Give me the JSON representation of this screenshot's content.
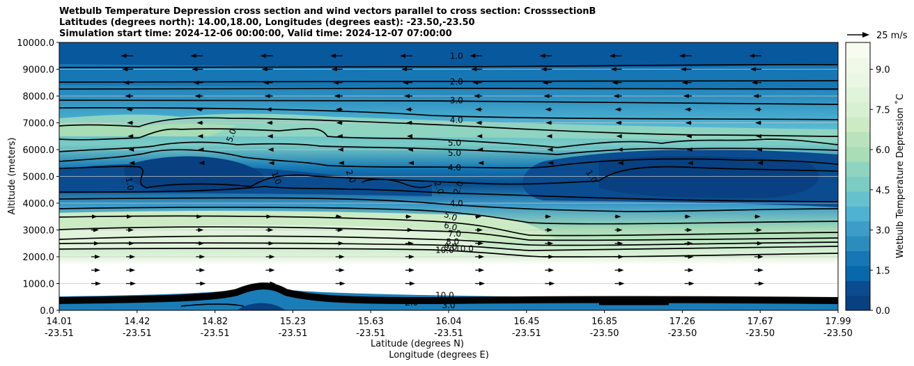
{
  "chart_data": {
    "type": "contour",
    "title_lines": [
      "Wetbulb Temperature Depression cross section and wind vectors parallel to cross section: CrosssectionB",
      "Latitudes (degrees north): 14.00,18.00, Longitudes (degrees east): -23.50,-23.50",
      "Simulation start time: 2024-12-06 00:00:00, Valid time: 2024-12-07 07:00:00"
    ],
    "ylabel": "Altitude (meters)",
    "xlabel_lat": "Latitude (degrees N)",
    "xlabel_lon": "Longitude (degrees E)",
    "ylim": [
      0,
      10000
    ],
    "y_ticks": [
      "0.0",
      "1000.0",
      "2000.0",
      "3000.0",
      "4000.0",
      "5000.0",
      "6000.0",
      "7000.0",
      "8000.0",
      "9000.0",
      "10000.0"
    ],
    "x_range": [
      14.01,
      17.99
    ],
    "x_ticks": [
      {
        "lat": "14.01",
        "lon": "-23.51"
      },
      {
        "lat": "14.42",
        "lon": "-23.51"
      },
      {
        "lat": "14.82",
        "lon": "-23.51"
      },
      {
        "lat": "15.23",
        "lon": "-23.51"
      },
      {
        "lat": "15.63",
        "lon": "-23.51"
      },
      {
        "lat": "16.04",
        "lon": "-23.51"
      },
      {
        "lat": "16.45",
        "lon": "-23.51"
      },
      {
        "lat": "16.85",
        "lon": "-23.50"
      },
      {
        "lat": "17.26",
        "lon": "-23.50"
      },
      {
        "lat": "17.67",
        "lon": "-23.50"
      },
      {
        "lat": "17.99",
        "lon": "-23.50"
      }
    ],
    "colorbar": {
      "label": "Wetbulb Temperature Depression ˚C",
      "range": [
        0,
        10
      ],
      "ticks": [
        "0.0",
        "1.5",
        "3.0",
        "4.5",
        "6.0",
        "7.5",
        "9.0"
      ],
      "colors": [
        "#084081",
        "#0a4c8f",
        "#0868ac",
        "#1577b5",
        "#2b8cbe",
        "#3d9cc8",
        "#4eb3d3",
        "#66c1cf",
        "#7bccc4",
        "#8fd4c0",
        "#a8ddb5",
        "#b8e3bd",
        "#ccebc5",
        "#d8f0d2",
        "#e0f3db",
        "#e9f7e4",
        "#f0f9e8",
        "#f7fcf0"
      ]
    },
    "grid": "horizontal",
    "quiver_key": "25 m/s",
    "contour_labels": [
      {
        "text": "1.0",
        "x": 16.04,
        "y": 9500,
        "rot": 0
      },
      {
        "text": "2.0",
        "x": 16.04,
        "y": 8530,
        "rot": 0
      },
      {
        "text": "3.0",
        "x": 16.04,
        "y": 7830,
        "rot": 0
      },
      {
        "text": "4.0",
        "x": 16.04,
        "y": 7100,
        "rot": 0
      },
      {
        "text": "5.0",
        "x": 16.03,
        "y": 6250,
        "rot": 0
      },
      {
        "text": "5.0",
        "x": 16.03,
        "y": 5870,
        "rot": 0
      },
      {
        "text": "4.0",
        "x": 16.03,
        "y": 5320,
        "rot": 0
      },
      {
        "text": "4.0",
        "x": 16.04,
        "y": 3990,
        "rot": 0
      },
      {
        "text": "5.0",
        "x": 14.89,
        "y": 6530,
        "rot": -70
      },
      {
        "text": "1.0",
        "x": 14.37,
        "y": 4720,
        "rot": 80
      },
      {
        "text": "1.0",
        "x": 15.12,
        "y": 4940,
        "rot": 70
      },
      {
        "text": "2.0",
        "x": 15.5,
        "y": 5000,
        "rot": 70
      },
      {
        "text": "2.0",
        "x": 15.95,
        "y": 4580,
        "rot": 70
      },
      {
        "text": "2.0",
        "x": 16.05,
        "y": 4580,
        "rot": -70
      },
      {
        "text": "1.0",
        "x": 16.73,
        "y": 5000,
        "rot": 60
      },
      {
        "text": "5.0",
        "x": 16.01,
        "y": 3510,
        "rot": 20
      },
      {
        "text": "6.0",
        "x": 16.01,
        "y": 3130,
        "rot": 15
      },
      {
        "text": "7.0",
        "x": 16.03,
        "y": 2860,
        "rot": 0
      },
      {
        "text": "8.0",
        "x": 16.02,
        "y": 2560,
        "rot": 0
      },
      {
        "text": "9.0",
        "x": 16.01,
        "y": 2370,
        "rot": 0
      },
      {
        "text": "10.0",
        "x": 15.98,
        "y": 2250,
        "rot": 0
      },
      {
        "text": "10.0",
        "x": 16.08,
        "y": 2300,
        "rot": 0
      },
      {
        "text": "10.0",
        "x": 15.98,
        "y": 560,
        "rot": 0
      },
      {
        "text": "9.0",
        "x": 15.98,
        "y": 380,
        "rot": 0
      },
      {
        "text": "2.0",
        "x": 15.81,
        "y": 280,
        "rot": 0
      },
      {
        "text": "3.0",
        "x": 16.0,
        "y": 180,
        "rot": 0
      }
    ]
  }
}
